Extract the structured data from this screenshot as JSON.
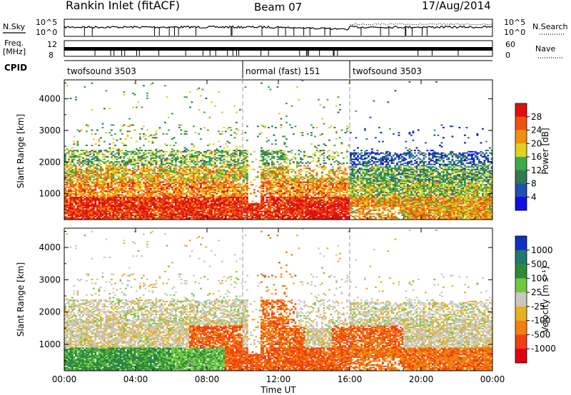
{
  "header": {
    "station": "Rankin Inlet (fitACF)",
    "beam": "Beam 07",
    "date": "17/Aug/2014"
  },
  "summary": {
    "nsky_label": "N.Sky",
    "nsearch_label": "N.Search",
    "freq_label_1": "Freq.",
    "freq_label_2": "[MHz]",
    "nave_label": "Nave",
    "cpid_label": "CPID",
    "noise_ticks": [
      "10^5",
      "10^0"
    ],
    "freq_ticks": [
      "12",
      "8"
    ],
    "nave_ticks": [
      "60",
      "0"
    ],
    "cpid_segments": [
      {
        "label": "twofsound 3503",
        "start_h": 0.0,
        "end_h": 10.0
      },
      {
        "label": "normal (fast) 151",
        "start_h": 10.0,
        "end_h": 16.0
      },
      {
        "label": "twofsound 3503",
        "start_h": 16.0,
        "end_h": 24.0
      }
    ]
  },
  "chart_data": [
    {
      "type": "heatmap",
      "panel": "power",
      "ylabel": "Slant Range [km]",
      "yticks": [
        1000,
        2000,
        3000,
        4000
      ],
      "ylim": [
        180,
        4600
      ],
      "xlim": [
        0,
        24
      ],
      "colorbar": {
        "label": "Power [dB]",
        "ticks": [
          "4",
          "8",
          "12",
          "16",
          "20",
          "24",
          "28"
        ],
        "colors": [
          "#1010e0",
          "#2050b0",
          "#307a50",
          "#40a848",
          "#e0d020",
          "#f09010",
          "#f05010",
          "#e01010"
        ]
      }
    },
    {
      "type": "heatmap",
      "panel": "velocity",
      "ylabel": "Slant Range [km]",
      "xlabel": "Time UT",
      "yticks": [
        1000,
        2000,
        3000,
        4000
      ],
      "ylim": [
        180,
        4600
      ],
      "xlim": [
        0,
        24
      ],
      "xticks": [
        "00:00",
        "04:00",
        "08:00",
        "12:00",
        "16:00",
        "20:00",
        "00:00"
      ],
      "colorbar": {
        "label": "Velocity [m s⁻¹]",
        "ticks": [
          "1000",
          "500",
          "100",
          "25",
          "-25",
          "-100",
          "-500",
          "-1000"
        ],
        "colors": [
          "#1030c0",
          "#207870",
          "#2e8a3a",
          "#70c840",
          "#c8c8c0",
          "#e8b020",
          "#f08010",
          "#f04010",
          "#e00010"
        ]
      }
    }
  ]
}
